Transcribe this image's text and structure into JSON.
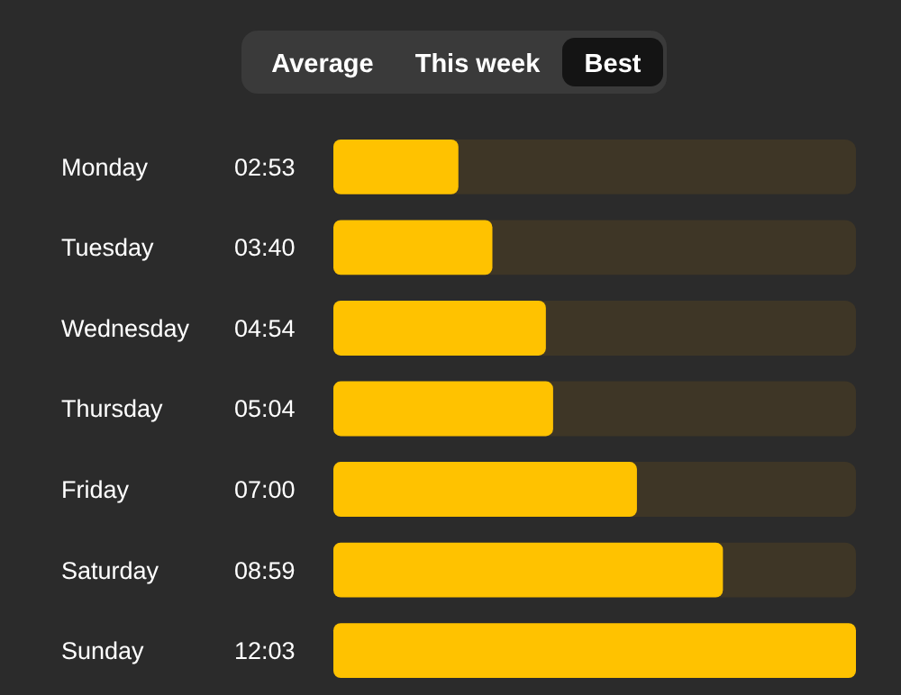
{
  "chart_data": {
    "type": "bar",
    "orientation": "horizontal",
    "categories": [
      "Monday",
      "Tuesday",
      "Wednesday",
      "Thursday",
      "Friday",
      "Saturday",
      "Sunday"
    ],
    "values": [
      2.883,
      3.667,
      4.9,
      5.067,
      7,
      8.983,
      12.05
    ],
    "value_labels": [
      "02:53",
      "03:40",
      "04:54",
      "05:04",
      "07:00",
      "08:59",
      "12:03"
    ],
    "color": "#ffc200",
    "annotations": [
      "Average",
      "This week",
      "Best"
    ]
  }
}
